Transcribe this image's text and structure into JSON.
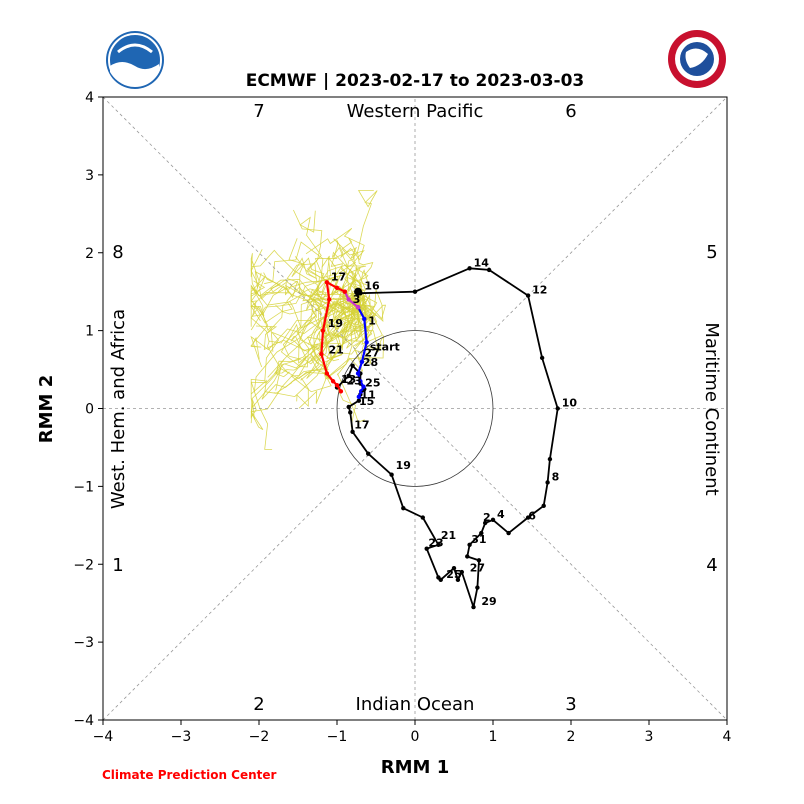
{
  "chart_data": {
    "type": "line",
    "title": "ECMWF | 2023-02-17 to 2023-03-03",
    "xlabel": "RMM 1",
    "ylabel": "RMM 2",
    "xlim": [
      -4,
      4
    ],
    "ylim": [
      -4,
      4
    ],
    "xticks": [
      "−4",
      "−3",
      "−2",
      "−1",
      "0",
      "1",
      "2",
      "3",
      "4"
    ],
    "yticks": [
      "−4",
      "−3",
      "−2",
      "−1",
      "0",
      "1",
      "2",
      "3",
      "4"
    ],
    "phases": [
      "1",
      "2",
      "3",
      "4",
      "5",
      "6",
      "7",
      "8"
    ],
    "regions": {
      "top": "Western Pacific",
      "bottom": "Indian Ocean",
      "left": "West. Hem. and Africa",
      "right": "Maritime Continent"
    },
    "credit": "Climate Prediction Center",
    "colors": {
      "observed": "#000000",
      "ensemble": "#d6d23a",
      "week1": "#0000ff",
      "week2": "#cc33cc",
      "week3": "#ff0000"
    },
    "series": [
      {
        "key": "observed",
        "x": [
          -0.73,
          -0.7,
          0,
          0.7,
          0.95,
          1.45,
          1.63,
          1.83,
          1.73,
          1.7,
          1.65,
          1.45,
          1.2,
          1.0,
          0.9,
          0.85,
          0.7,
          0.67,
          0.82,
          0.8,
          0.75,
          0.6,
          0.55,
          0.5,
          0.33,
          0.3,
          0.15,
          0.3,
          0.1,
          -0.15,
          -0.3,
          -0.6,
          -0.8,
          -0.83,
          -0.85,
          -0.72,
          -0.7,
          -0.65,
          -0.7,
          -0.7,
          -0.8,
          -0.85,
          -1.0
        ],
        "y": [
          1.5,
          1.48,
          1.5,
          1.8,
          1.78,
          1.45,
          0.65,
          0.0,
          -0.65,
          -0.95,
          -1.25,
          -1.4,
          -1.6,
          -1.43,
          -1.47,
          -1.6,
          -1.75,
          -1.9,
          -1.95,
          -2.3,
          -2.55,
          -2.1,
          -2.2,
          -2.05,
          -2.2,
          -2.17,
          -1.8,
          -1.75,
          -1.4,
          -1.28,
          -0.85,
          -0.58,
          -0.3,
          -0.05,
          0.02,
          0.1,
          0.18,
          0.25,
          0.32,
          0.45,
          0.55,
          0.42,
          0.27
        ],
        "labels": [
          {
            "text": "16",
            "x": -0.7,
            "y": 1.5
          },
          {
            "text": "14",
            "x": 0.7,
            "y": 1.8
          },
          {
            "text": "12",
            "x": 1.45,
            "y": 1.45
          },
          {
            "text": "10",
            "x": 1.83,
            "y": 0.0
          },
          {
            "text": "8",
            "x": 1.7,
            "y": -0.95
          },
          {
            "text": "6",
            "x": 1.4,
            "y": -1.45
          },
          {
            "text": "4",
            "x": 1.0,
            "y": -1.43
          },
          {
            "text": "2",
            "x": 0.82,
            "y": -1.47
          },
          {
            "text": "31",
            "x": 0.67,
            "y": -1.75
          },
          {
            "text": "29",
            "x": 0.8,
            "y": -2.55
          },
          {
            "text": "27",
            "x": 0.65,
            "y": -2.12
          },
          {
            "text": "25",
            "x": 0.35,
            "y": -2.2
          },
          {
            "text": "23",
            "x": 0.12,
            "y": -1.8
          },
          {
            "text": "21",
            "x": 0.28,
            "y": -1.7
          },
          {
            "text": "19",
            "x": -0.3,
            "y": -0.8
          },
          {
            "text": "17",
            "x": -0.83,
            "y": -0.28
          },
          {
            "text": "15",
            "x": -0.77,
            "y": 0.02
          },
          {
            "text": "13",
            "x": -1.0,
            "y": 0.3
          }
        ]
      },
      {
        "key": "week1",
        "x": [
          -0.73,
          -0.65,
          -0.62,
          -0.68,
          -0.73,
          -0.7,
          -0.66,
          -0.69,
          -0.72
        ],
        "y": [
          1.3,
          1.15,
          0.85,
          0.6,
          0.45,
          0.35,
          0.28,
          0.22,
          0.15
        ],
        "labels": [
          {
            "text": "1",
            "x": -0.65,
            "y": 1.05
          },
          {
            "text": "start",
            "x": -0.63,
            "y": 0.72
          },
          {
            "text": "27",
            "x": -0.7,
            "y": 0.64
          },
          {
            "text": "28",
            "x": -0.72,
            "y": 0.52
          },
          {
            "text": "25",
            "x": -0.69,
            "y": 0.26
          },
          {
            "text": "11",
            "x": -0.75,
            "y": 0.1
          }
        ]
      },
      {
        "key": "week2",
        "x": [
          -0.73,
          -0.85,
          -0.9
        ],
        "y": [
          1.3,
          1.4,
          1.5
        ],
        "labels": [
          {
            "text": "3",
            "x": -0.85,
            "y": 1.33
          }
        ]
      },
      {
        "key": "week3",
        "x": [
          -0.9,
          -1.0,
          -1.13,
          -1.1,
          -1.18,
          -1.2,
          -1.13,
          -1.05,
          -1.0,
          -0.95
        ],
        "y": [
          1.5,
          1.55,
          1.62,
          1.4,
          1.0,
          0.7,
          0.45,
          0.35,
          0.3,
          0.22
        ],
        "labels": [
          {
            "text": "17",
            "x": -1.13,
            "y": 1.62
          },
          {
            "text": "19",
            "x": -1.17,
            "y": 1.02
          },
          {
            "text": "21",
            "x": -1.16,
            "y": 0.68
          },
          {
            "text": "23",
            "x": -0.93,
            "y": 0.28
          }
        ]
      }
    ]
  }
}
